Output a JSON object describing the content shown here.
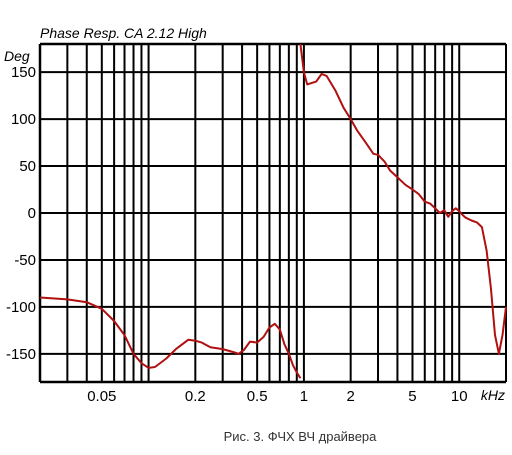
{
  "chart_data": {
    "type": "line",
    "title": "Phase Resp.  CA  2.12   High",
    "ylabel": "Deg",
    "xunit": "kHz",
    "caption": "Рис. 3. ФЧХ ВЧ драйвера",
    "xscale": "log",
    "xlim": [
      0.02,
      20
    ],
    "ylim": [
      -180,
      180
    ],
    "grid": true,
    "y_ticks": [
      {
        "value": 150,
        "label": "150"
      },
      {
        "value": 100,
        "label": "100"
      },
      {
        "value": 50,
        "label": "50"
      },
      {
        "value": 0,
        "label": "0"
      },
      {
        "value": -50,
        "label": "-50"
      },
      {
        "value": -100,
        "label": "-100"
      },
      {
        "value": -150,
        "label": "-150"
      }
    ],
    "x_ticks": [
      {
        "value": 0.05,
        "label": "0.05"
      },
      {
        "value": 0.2,
        "label": "0.2"
      },
      {
        "value": 0.5,
        "label": "0.5"
      },
      {
        "value": 1,
        "label": "1"
      },
      {
        "value": 2,
        "label": "2"
      },
      {
        "value": 5,
        "label": "5"
      },
      {
        "value": 10,
        "label": "10"
      }
    ],
    "series": [
      {
        "color": "#b01010",
        "segments": [
          [
            [
              0.02,
              -90
            ],
            [
              0.03,
              -92
            ],
            [
              0.04,
              -95
            ],
            [
              0.05,
              -102
            ],
            [
              0.06,
              -115
            ],
            [
              0.07,
              -130
            ],
            [
              0.08,
              -150
            ],
            [
              0.09,
              -160
            ],
            [
              0.1,
              -165
            ],
            [
              0.11,
              -164
            ],
            [
              0.13,
              -155
            ],
            [
              0.15,
              -145
            ],
            [
              0.18,
              -135
            ],
            [
              0.2,
              -136
            ],
            [
              0.22,
              -138
            ],
            [
              0.25,
              -143
            ],
            [
              0.3,
              -145
            ],
            [
              0.35,
              -148
            ],
            [
              0.38,
              -150
            ],
            [
              0.41,
              -146
            ],
            [
              0.45,
              -137
            ],
            [
              0.5,
              -138
            ],
            [
              0.55,
              -132
            ],
            [
              0.6,
              -122
            ],
            [
              0.65,
              -118
            ],
            [
              0.7,
              -124
            ],
            [
              0.75,
              -140
            ],
            [
              0.8,
              -150
            ],
            [
              0.85,
              -162
            ],
            [
              0.9,
              -170
            ],
            [
              0.95,
              -176
            ]
          ],
          [
            [
              0.95,
              180
            ],
            [
              1.0,
              150
            ],
            [
              1.05,
              137
            ],
            [
              1.1,
              138
            ],
            [
              1.2,
              140
            ],
            [
              1.3,
              148
            ],
            [
              1.4,
              146
            ],
            [
              1.6,
              130
            ],
            [
              1.8,
              112
            ],
            [
              2.0,
              100
            ],
            [
              2.2,
              88
            ],
            [
              2.5,
              75
            ],
            [
              2.8,
              63
            ],
            [
              3.0,
              62
            ],
            [
              3.3,
              55
            ],
            [
              3.6,
              45
            ],
            [
              4.0,
              38
            ],
            [
              4.5,
              30
            ],
            [
              5.0,
              25
            ],
            [
              5.5,
              20
            ],
            [
              6.0,
              12
            ],
            [
              6.5,
              10
            ],
            [
              7.0,
              5
            ],
            [
              7.5,
              0
            ],
            [
              8.0,
              3
            ],
            [
              8.5,
              -4
            ],
            [
              9.0,
              2
            ],
            [
              9.5,
              5
            ],
            [
              10.0,
              2
            ],
            [
              10.5,
              -2
            ],
            [
              11.0,
              -5
            ],
            [
              12.0,
              -8
            ],
            [
              13.0,
              -10
            ],
            [
              14.0,
              -15
            ],
            [
              15.0,
              -40
            ],
            [
              16.0,
              -80
            ],
            [
              17.0,
              -130
            ],
            [
              18.0,
              -150
            ],
            [
              19.0,
              -130
            ],
            [
              20.0,
              -100
            ]
          ]
        ]
      }
    ]
  }
}
